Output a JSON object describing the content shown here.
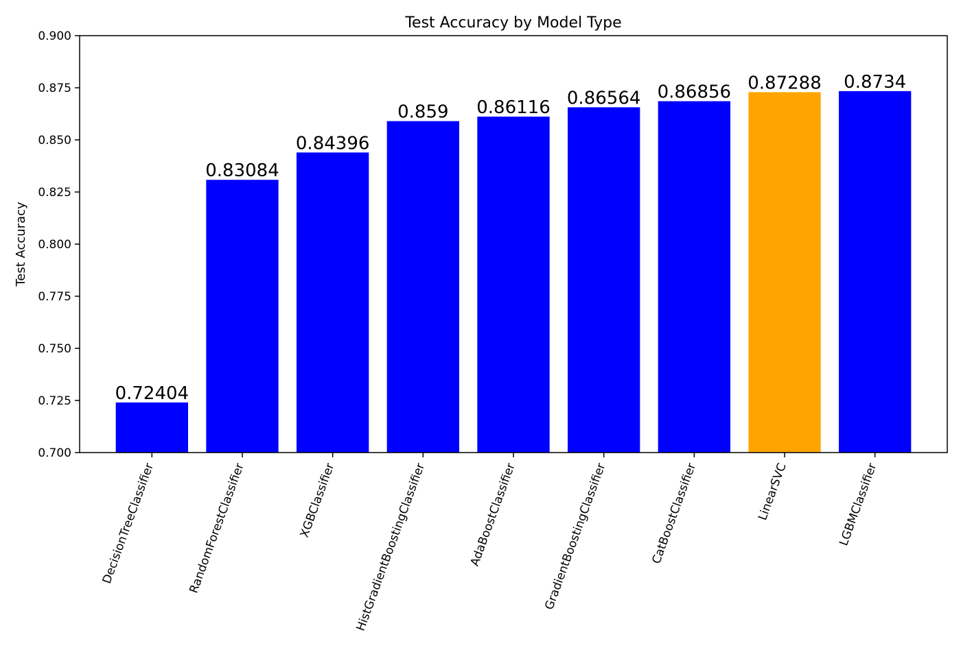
{
  "chart_data": {
    "type": "bar",
    "title": "Test Accuracy by Model Type",
    "xlabel": "",
    "ylabel": "Test Accuracy",
    "ylim": [
      0.7,
      0.9
    ],
    "yticks": [
      "0.700",
      "0.725",
      "0.750",
      "0.775",
      "0.800",
      "0.825",
      "0.850",
      "0.875",
      "0.900"
    ],
    "categories": [
      "DecisionTreeClassifier",
      "RandomForestClassifier",
      "XGBClassifier",
      "HistGradientBoostingClassifier",
      "AdaBoostClassifier",
      "GradientBoostingClassifier",
      "CatBoostClassifier",
      "LinearSVC",
      "LGBMClassifier"
    ],
    "values": [
      0.72404,
      0.83084,
      0.84396,
      0.859,
      0.86116,
      0.86564,
      0.86856,
      0.87288,
      0.8734
    ],
    "data_labels": [
      "0.72404",
      "0.83084",
      "0.84396",
      "0.859",
      "0.86116",
      "0.86564",
      "0.86856",
      "0.87288",
      "0.8734"
    ],
    "bar_colors": [
      "#0000ff",
      "#0000ff",
      "#0000ff",
      "#0000ff",
      "#0000ff",
      "#0000ff",
      "#0000ff",
      "#ffa500",
      "#0000ff"
    ],
    "grid": false,
    "xtick_rotation": "70 degrees"
  }
}
